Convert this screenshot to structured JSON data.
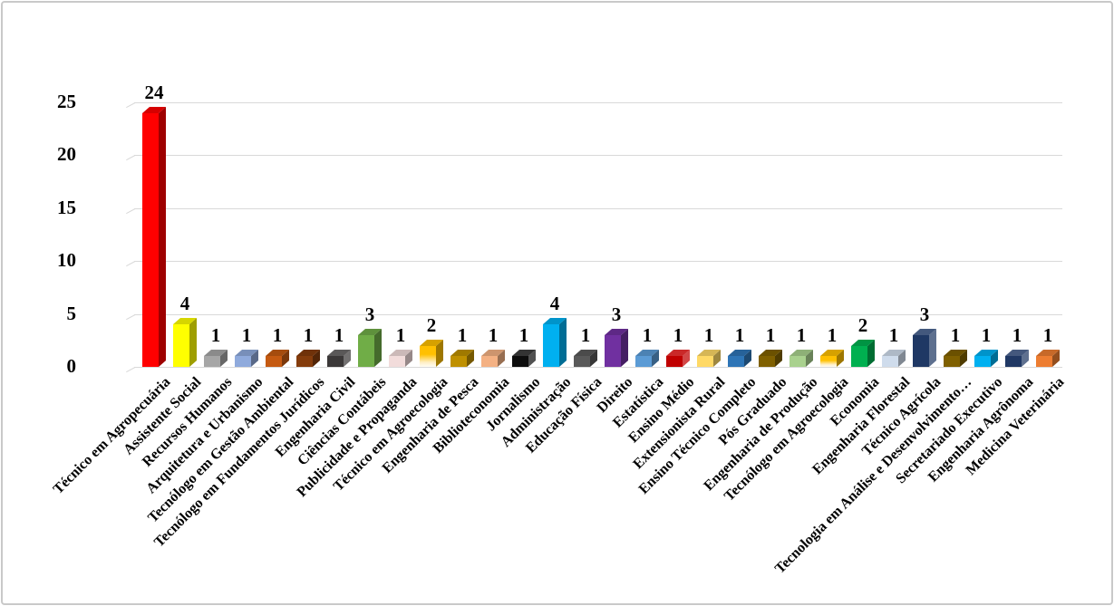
{
  "figure": {
    "background": "#FFFFFF",
    "border_color": "#C9C9C9"
  },
  "chart_data": {
    "type": "bar",
    "style": "3d-column",
    "title": "",
    "xlabel": "",
    "ylabel": "",
    "categories": [
      "Técnico em Agropecuária",
      "Assistente Social",
      "Recursos Humanos",
      "Arquitetura e Urbanismo",
      "Tecnólogo em Gestão Ambiental",
      "Tecnólogo em Fundamentos Jurídicos",
      "Engenharia Civil",
      "Ciências Contábeis",
      "Publicidade e Propaganda",
      "Técnico em Agroecologia",
      "Engenharia de Pesca",
      "Biblioteconomia",
      "Jornalismo",
      "Administração",
      "Educação Física",
      "Direito",
      "Estatística",
      "Ensino Médio",
      "Extensionista Rural",
      "Ensino Técnico Completo",
      "Pós Graduado",
      "Engenharia de Produção",
      "Tecnólogo em Agroecologia",
      "Economia",
      "Engenharia Florestal",
      "Técnico Agrícola",
      "Tecnologia em Análise e Desenvolvimento…",
      "Secretariado Executivo",
      "Engenharia Agrônoma",
      "Medicina Veterinária"
    ],
    "values": [
      24,
      4,
      1,
      1,
      1,
      1,
      1,
      3,
      1,
      2,
      1,
      1,
      1,
      4,
      1,
      3,
      1,
      1,
      1,
      1,
      1,
      1,
      1,
      2,
      1,
      3,
      1,
      1,
      1,
      1
    ],
    "colors": [
      "#FF0000",
      "#FFFF00",
      "#A6A6A6",
      "#8FAADC",
      "#C55A11",
      "#843C0C",
      "#3B3838",
      "#70AD47",
      "#F2DCDB",
      "#FFC000",
      "#BF9000",
      "#F4B183",
      "#0D0D0D",
      "#00B0F0",
      "#595959",
      "#7030A0",
      "#5B9BD5",
      "#C00000",
      "#FFD966",
      "#2E75B6",
      "#7F6000",
      "#A9D18E",
      "#FFC000",
      "#00B050",
      "#CFDCEC",
      "#1F3864",
      "#7F6000",
      "#00B0F0",
      "#203864",
      "#ED7D31"
    ],
    "gradient_fade_bottom_indices": [
      9,
      22
    ],
    "data_labels": true,
    "yticks": [
      0,
      5,
      10,
      15,
      20,
      25
    ],
    "ylim": [
      0,
      25
    ],
    "grid": true,
    "gridline_color": "#D9D9D9",
    "text_color": "#000000",
    "legend": false,
    "x_tick_rotation_deg": 45
  }
}
